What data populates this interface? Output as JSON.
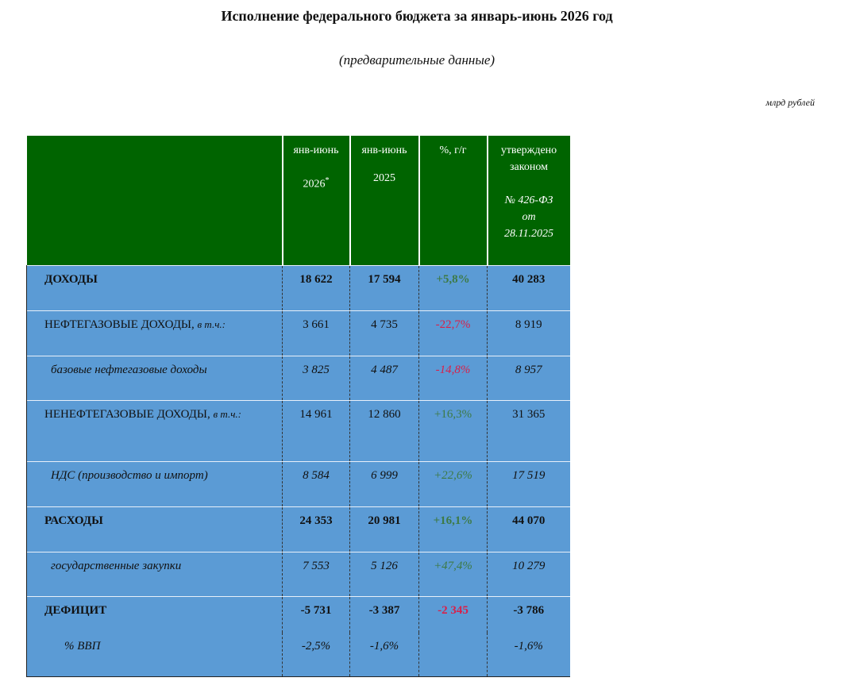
{
  "header": {
    "title": "Исполнение федерального бюджета за январь-июнь 2026 год",
    "subtitle": "(предварительные данные)",
    "unit": "млрд рублей"
  },
  "table": {
    "columns": {
      "y2026": {
        "line1": "янв-июнь",
        "line2": "2026",
        "mark": "*"
      },
      "y2025": {
        "line1": "янв-июнь",
        "line2": "2025"
      },
      "pct": {
        "line1": "%, г/г"
      },
      "law": {
        "line1": "утверждено",
        "line2": "законом",
        "line3": "№ 426-ФЗ",
        "line4": "от",
        "line5": "28.11.2025"
      }
    },
    "rows": [
      {
        "label": "ДОХОДЫ",
        "y2026": "18 622",
        "y2025": "17 594",
        "pct": "+5,8%",
        "law": "40 283"
      },
      {
        "label": "НЕФТЕГАЗОВЫЕ ДОХОДЫ, ",
        "note": "в т.ч.:",
        "y2026": "3 661",
        "y2025": "4 735",
        "pct": "-22,7%",
        "law": "8 919"
      },
      {
        "label": "базовые нефтегазовые доходы",
        "y2026": "3 825",
        "y2025": "4 487",
        "pct": "-14,8%",
        "law": "8 957"
      },
      {
        "label": "НЕНЕФТЕГАЗОВЫЕ ДОХОДЫ, ",
        "note": "в т.ч.:",
        "y2026": "14 961",
        "y2025": "12 860",
        "pct": "+16,3%",
        "law": "31 365"
      },
      {
        "label": "НДС (производство и импорт)",
        "y2026": "8 584",
        "y2025": "6 999",
        "pct": "+22,6%",
        "law": "17 519"
      },
      {
        "label": "РАСХОДЫ",
        "y2026": "24 353",
        "y2025": "20 981",
        "pct": "+16,1%",
        "law": "44 070"
      },
      {
        "label": "государственные закупки",
        "y2026": "7 553",
        "y2025": "5 126",
        "pct": "+47,4%",
        "law": "10 279"
      },
      {
        "label": "ДЕФИЦИТ",
        "y2026": "-5 731",
        "y2025": "-3 387",
        "pct": "-2 345",
        "law": "-3 786"
      },
      {
        "label": "% ВВП",
        "y2026": "-2,5%",
        "y2025": "-1,6%",
        "law": "-1,6%"
      }
    ]
  }
}
